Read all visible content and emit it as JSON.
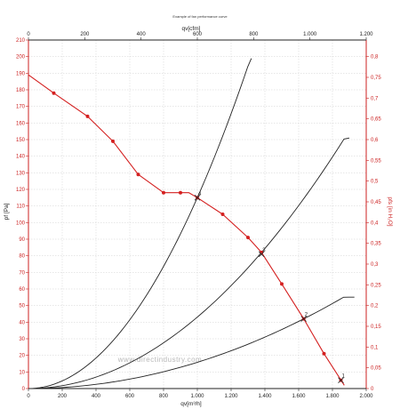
{
  "chart_data": {
    "type": "line",
    "title": "Example of fan performance curve",
    "xlabel": "qv[m³/h]",
    "x2label": "qv[cfm]",
    "ylabel": "pf [Pa]",
    "y2label": "pfs [in H₂O]",
    "watermark": "www.directindustry.com",
    "xlim": [
      0,
      2000
    ],
    "ylim": [
      0,
      210
    ],
    "x2lim": [
      0,
      1200
    ],
    "y2lim": [
      0,
      0.84
    ],
    "x_ticks": [
      "0",
      "200",
      "400",
      "600",
      "800",
      "1.000",
      "1.200",
      "1.400",
      "1.600",
      "1.800",
      "2.000"
    ],
    "x2_ticks": [
      "0",
      "200",
      "400",
      "600",
      "800",
      "1.000",
      "1.200"
    ],
    "y_ticks": [
      "0",
      "10",
      "20",
      "30",
      "40",
      "50",
      "60",
      "70",
      "80",
      "90",
      "100",
      "110",
      "120",
      "130",
      "140",
      "150",
      "160",
      "170",
      "180",
      "190",
      "200",
      "210"
    ],
    "y2_ticks": [
      "0",
      "0,05",
      "0,1",
      "0,15",
      "0,2",
      "0,25",
      "0,3",
      "0,35",
      "0,4",
      "0,45",
      "0,5",
      "0,55",
      "0,6",
      "0,65",
      "0,7",
      "0,75",
      "0,8"
    ],
    "grid": true,
    "fan_curve": {
      "color": "#d42020",
      "x": [
        0,
        150,
        350,
        500,
        650,
        800,
        950,
        1000,
        1150,
        1300,
        1380,
        1500,
        1630,
        1750,
        1870
      ],
      "y": [
        189,
        178,
        164,
        149,
        129,
        118,
        118,
        115,
        105,
        91,
        82,
        63,
        42,
        21,
        2
      ],
      "markers_x": [
        150,
        350,
        500,
        650,
        800,
        900,
        1000,
        1150,
        1300,
        1380,
        1500,
        1630,
        1750,
        1850
      ],
      "markers_y": [
        178,
        164,
        149,
        129,
        118,
        118,
        115,
        105,
        91,
        82,
        63,
        42,
        21,
        5
      ]
    },
    "system_curves": [
      {
        "color": "#222222",
        "x": [
          0,
          1000,
          1320
        ],
        "y": [
          0,
          115,
          195
        ]
      },
      {
        "color": "#222222",
        "x": [
          0,
          1380,
          1900
        ],
        "y": [
          0,
          82,
          148
        ]
      },
      {
        "color": "#222222",
        "x": [
          0,
          1630,
          1930
        ],
        "y": [
          0,
          42,
          54
        ]
      }
    ],
    "operating_points": [
      {
        "label": "4",
        "x": 1000,
        "y": 115
      },
      {
        "label": "3",
        "x": 1380,
        "y": 81
      },
      {
        "label": "2",
        "x": 1630,
        "y": 42
      },
      {
        "label": "1",
        "x": 1850,
        "y": 5
      }
    ]
  }
}
